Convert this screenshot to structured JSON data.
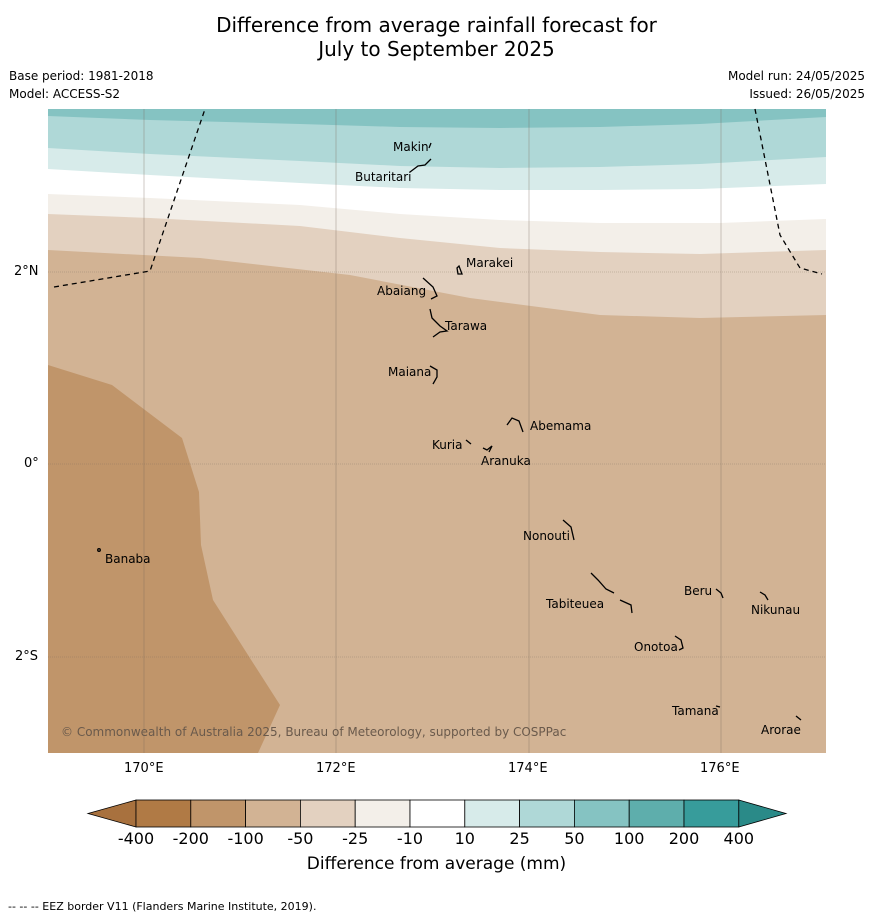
{
  "title_line1": "Difference from average rainfall forecast for",
  "title_line2": "July to September 2025",
  "base_period": "Base period: 1981-2018",
  "model": "Model: ACCESS-S2",
  "model_run": "Model run: 24/05/2025",
  "issued": "Issued: 26/05/2025",
  "copyright": "© Commonwealth of Australia 2025, Bureau of Meteorology, supported by COSPPac",
  "footnote": "--  --  -- EEZ border V11 (Flanders Marine Institute, 2019).",
  "lon_ticks": [
    "170°E",
    "172°E",
    "174°E",
    "176°E"
  ],
  "lat_ticks": [
    "2°N",
    "0°",
    "2°S"
  ],
  "islands": [
    {
      "name": "Makin"
    },
    {
      "name": "Butaritari"
    },
    {
      "name": "Marakei"
    },
    {
      "name": "Abaiang"
    },
    {
      "name": "Tarawa"
    },
    {
      "name": "Maiana"
    },
    {
      "name": "Abemama"
    },
    {
      "name": "Kuria"
    },
    {
      "name": "Aranuka"
    },
    {
      "name": "Banaba"
    },
    {
      "name": "Nonouti"
    },
    {
      "name": "Tabiteuea"
    },
    {
      "name": "Beru"
    },
    {
      "name": "Nikunau"
    },
    {
      "name": "Onotoa"
    },
    {
      "name": "Tamana"
    },
    {
      "name": "Arorae"
    }
  ],
  "colorbar": {
    "title": "Difference from average (mm)",
    "labels": [
      "-400",
      "-200",
      "-100",
      "-50",
      "-25",
      "-10",
      "10",
      "25",
      "50",
      "100",
      "200",
      "400"
    ],
    "colors": [
      "#a8713e",
      "#b07a45",
      "#c0956a",
      "#d2b394",
      "#e3d1c0",
      "#f3efe9",
      "#ffffff",
      "#d7ebea",
      "#afd8d7",
      "#85c3c2",
      "#5eaeac",
      "#379c9b",
      "#2a8a88"
    ]
  }
}
